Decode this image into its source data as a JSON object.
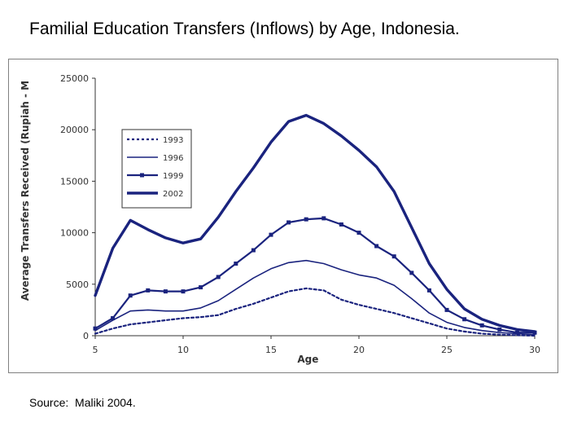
{
  "title": "Familial Education Transfers (Inflows) by Age, Indonesia.",
  "source": "Source:  Maliki 2004.",
  "chart_data": {
    "type": "line",
    "title": "",
    "xlabel": "Age",
    "ylabel": "Average Transfers Received (Rupiah - M",
    "xlim": [
      5,
      30
    ],
    "ylim": [
      0,
      25000
    ],
    "xticks": [
      5,
      10,
      15,
      20,
      25,
      30
    ],
    "yticks": [
      0,
      5000,
      10000,
      15000,
      20000,
      25000
    ],
    "xtick_labels": [
      "5",
      "10",
      "15",
      "20",
      "25",
      "30"
    ],
    "ytick_labels": [
      "0",
      "5000",
      "10000",
      "15000",
      "20000",
      "25000"
    ],
    "grid": false,
    "legend_position": "upper-left inside",
    "x": [
      5,
      6,
      7,
      8,
      9,
      10,
      11,
      12,
      13,
      14,
      15,
      16,
      17,
      18,
      19,
      20,
      21,
      22,
      23,
      24,
      25,
      26,
      27,
      28,
      29,
      30
    ],
    "series": [
      {
        "name": "1993",
        "style": "dotted",
        "color": "#1a237e",
        "values": [
          200,
          700,
          1100,
          1300,
          1500,
          1700,
          1800,
          2000,
          2600,
          3100,
          3700,
          4300,
          4600,
          4400,
          3500,
          3000,
          2600,
          2200,
          1700,
          1200,
          700,
          400,
          200,
          100,
          50,
          0
        ]
      },
      {
        "name": "1996",
        "style": "solid-thin",
        "color": "#1a237e",
        "values": [
          500,
          1500,
          2400,
          2500,
          2400,
          2400,
          2700,
          3400,
          4500,
          5600,
          6500,
          7100,
          7300,
          7000,
          6400,
          5900,
          5600,
          4900,
          3600,
          2200,
          1300,
          800,
          500,
          300,
          200,
          100
        ]
      },
      {
        "name": "1999",
        "style": "marker",
        "color": "#1a237e",
        "values": [
          700,
          1700,
          3900,
          4400,
          4300,
          4300,
          4700,
          5700,
          7000,
          8300,
          9800,
          11000,
          11300,
          11400,
          10800,
          10000,
          8700,
          7700,
          6100,
          4400,
          2500,
          1600,
          1000,
          600,
          300,
          300
        ]
      },
      {
        "name": "2002",
        "style": "solid-thick",
        "color": "#1a237e",
        "values": [
          3900,
          8500,
          11200,
          10300,
          9500,
          9000,
          9400,
          11500,
          14000,
          16300,
          18800,
          20800,
          21400,
          20600,
          19400,
          18000,
          16400,
          14000,
          10500,
          7000,
          4500,
          2600,
          1600,
          1000,
          600,
          400
        ]
      }
    ]
  }
}
